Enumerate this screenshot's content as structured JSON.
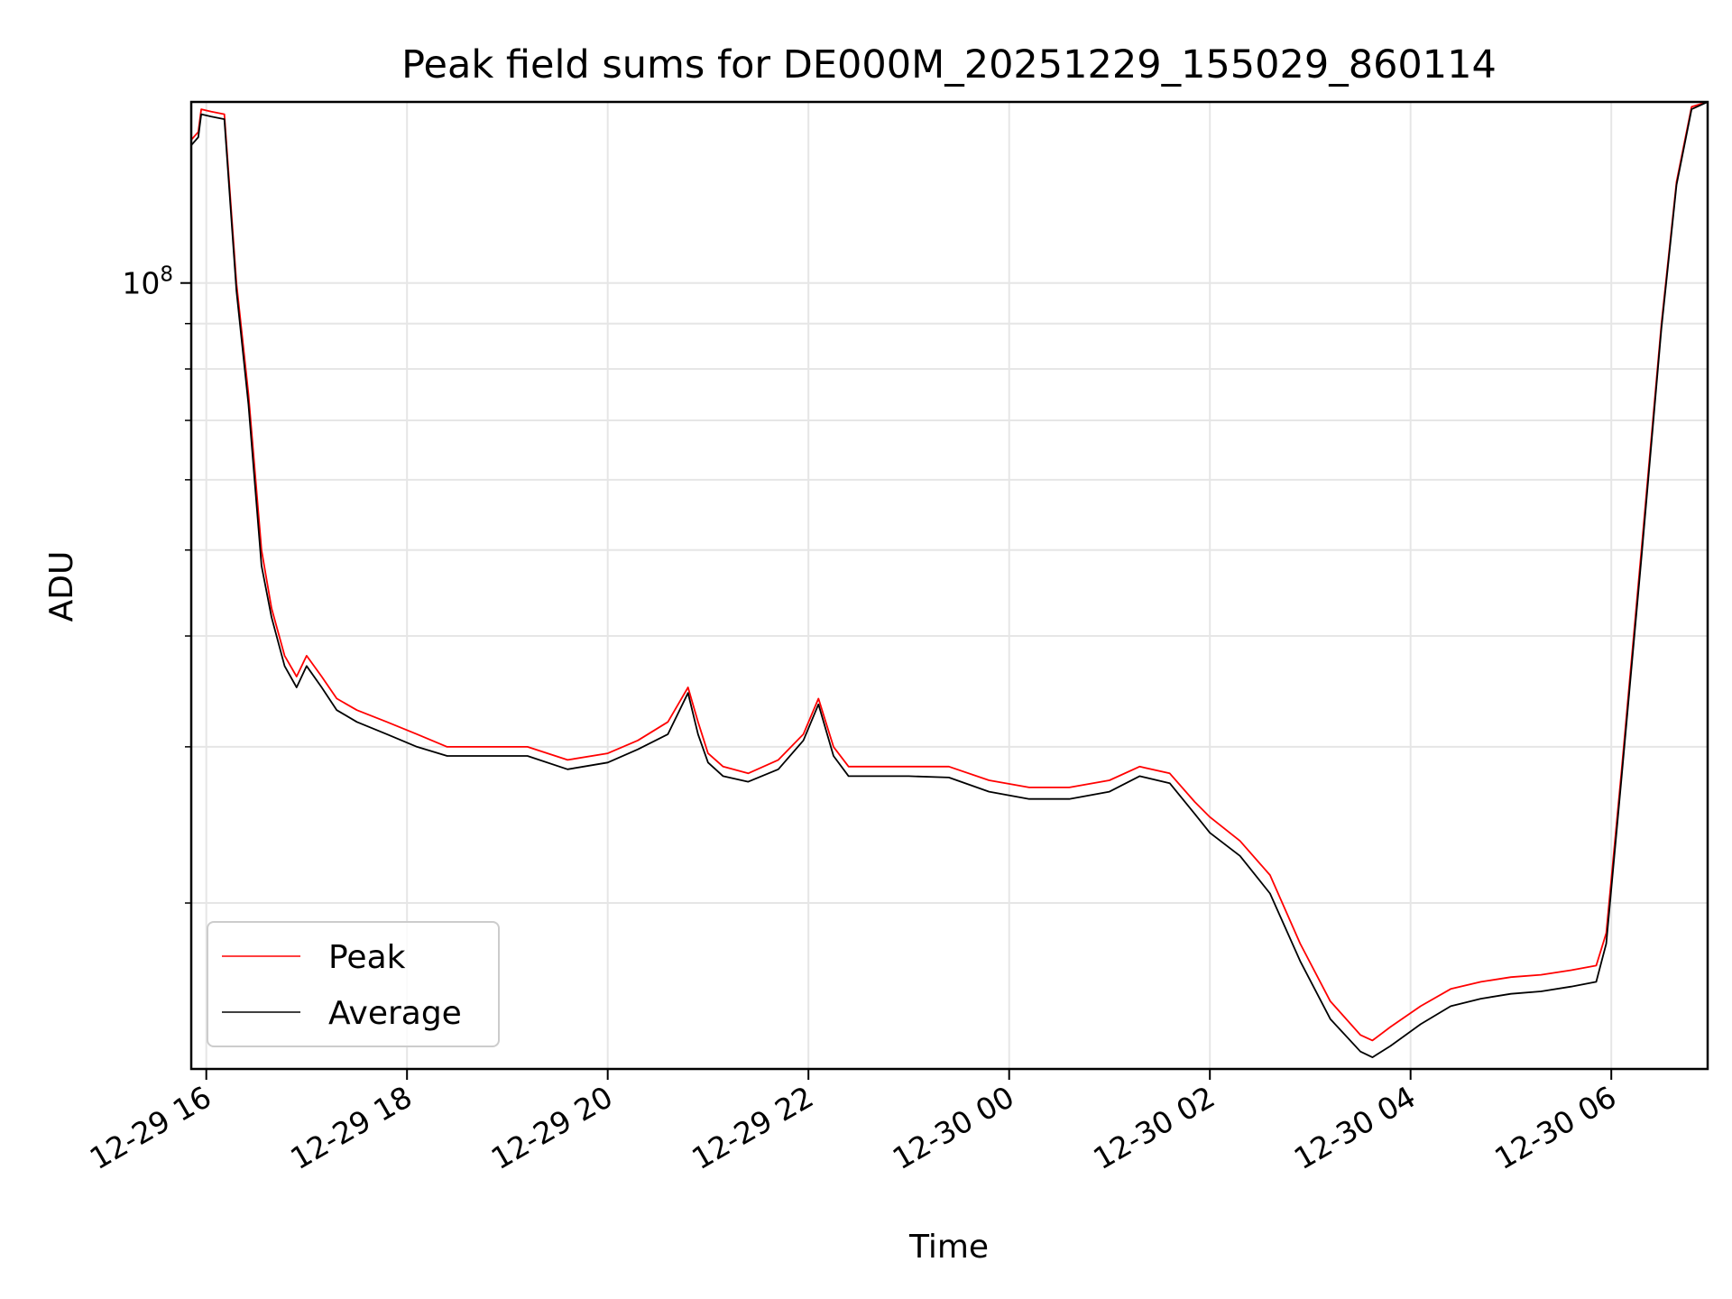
{
  "chart_data": {
    "type": "line",
    "title": "Peak field sums for DE000M_20251229_155029_860114",
    "xlabel": "Time",
    "ylabel": "ADU",
    "yscale": "log",
    "ylim": [
      13000000,
      160000000
    ],
    "xlim_hours": [
      15.85,
      30.96
    ],
    "x_unit": "hours since 2025-12-29 00:00",
    "xticks": [
      {
        "hour": 16,
        "label": "12-29 16"
      },
      {
        "hour": 18,
        "label": "12-29 18"
      },
      {
        "hour": 20,
        "label": "12-29 20"
      },
      {
        "hour": 22,
        "label": "12-29 22"
      },
      {
        "hour": 24,
        "label": "12-30 00"
      },
      {
        "hour": 26,
        "label": "12-30 02"
      },
      {
        "hour": 28,
        "label": "12-30 04"
      },
      {
        "hour": 30,
        "label": "12-30 06"
      }
    ],
    "yticks_major": [
      {
        "value": 100000000,
        "label": "10",
        "exponent": "8"
      }
    ],
    "yticks_minor": [
      20000000,
      30000000,
      40000000,
      50000000,
      60000000,
      70000000,
      80000000,
      90000000,
      200000000
    ],
    "grid": true,
    "legend_position": "lower-left",
    "series": [
      {
        "name": "Peak",
        "color": "#ff0000",
        "x": [
          15.85,
          15.92,
          15.95,
          16.05,
          16.18,
          16.3,
          16.42,
          16.55,
          16.65,
          16.78,
          16.9,
          17.0,
          17.15,
          17.3,
          17.5,
          17.8,
          18.1,
          18.4,
          18.8,
          19.2,
          19.6,
          20.0,
          20.3,
          20.6,
          20.8,
          20.9,
          21.0,
          21.15,
          21.4,
          21.7,
          21.95,
          22.1,
          22.25,
          22.4,
          22.7,
          23.0,
          23.4,
          23.8,
          24.2,
          24.6,
          25.0,
          25.3,
          25.6,
          25.85,
          26.0,
          26.3,
          26.6,
          26.9,
          27.2,
          27.5,
          27.62,
          27.8,
          28.1,
          28.4,
          28.7,
          29.0,
          29.3,
          29.6,
          29.85,
          29.95,
          30.1,
          30.3,
          30.5,
          30.65,
          30.8,
          30.96
        ],
        "y": [
          145000000,
          148000000,
          157000000,
          156000000,
          155000000,
          100000000,
          75000000,
          50000000,
          43000000,
          38000000,
          36000000,
          38000000,
          36000000,
          34000000,
          33000000,
          32000000,
          31000000,
          30000000,
          30000000,
          30000000,
          29000000,
          29500000,
          30500000,
          32000000,
          35000000,
          32000000,
          29500000,
          28500000,
          28000000,
          29000000,
          31000000,
          34000000,
          30000000,
          28500000,
          28500000,
          28500000,
          28500000,
          27500000,
          27000000,
          27000000,
          27500000,
          28500000,
          28000000,
          26000000,
          25000000,
          23500000,
          21500000,
          18000000,
          15500000,
          14200000,
          14000000,
          14500000,
          15300000,
          16000000,
          16300000,
          16500000,
          16600000,
          16800000,
          17000000,
          18500000,
          28000000,
          50000000,
          90000000,
          130000000,
          158000000,
          160000000
        ]
      },
      {
        "name": "Average",
        "color": "#000000",
        "x": [
          15.85,
          15.92,
          15.95,
          16.05,
          16.18,
          16.3,
          16.42,
          16.55,
          16.65,
          16.78,
          16.9,
          17.0,
          17.15,
          17.3,
          17.5,
          17.8,
          18.1,
          18.4,
          18.8,
          19.2,
          19.6,
          20.0,
          20.3,
          20.6,
          20.8,
          20.9,
          21.0,
          21.15,
          21.4,
          21.7,
          21.95,
          22.1,
          22.25,
          22.4,
          22.7,
          23.0,
          23.4,
          23.8,
          24.2,
          24.6,
          25.0,
          25.3,
          25.6,
          25.85,
          26.0,
          26.3,
          26.6,
          26.9,
          27.2,
          27.5,
          27.62,
          27.8,
          28.1,
          28.4,
          28.7,
          29.0,
          29.3,
          29.6,
          29.85,
          29.95,
          30.1,
          30.3,
          30.5,
          30.65,
          30.8,
          30.96
        ],
        "y": [
          143000000,
          146000000,
          155000000,
          154000000,
          153000000,
          98000000,
          73000000,
          48000000,
          42000000,
          37000000,
          35000000,
          37000000,
          35000000,
          33000000,
          32000000,
          31000000,
          30000000,
          29300000,
          29300000,
          29300000,
          28300000,
          28800000,
          29800000,
          31000000,
          34500000,
          31000000,
          28800000,
          27800000,
          27400000,
          28300000,
          30500000,
          33500000,
          29300000,
          27800000,
          27800000,
          27800000,
          27700000,
          26700000,
          26200000,
          26200000,
          26700000,
          27800000,
          27300000,
          25200000,
          24000000,
          22600000,
          20500000,
          17200000,
          14800000,
          13600000,
          13400000,
          13800000,
          14600000,
          15300000,
          15600000,
          15800000,
          15900000,
          16100000,
          16300000,
          18000000,
          27500000,
          49000000,
          89000000,
          129000000,
          157000000,
          160000000
        ]
      }
    ]
  }
}
